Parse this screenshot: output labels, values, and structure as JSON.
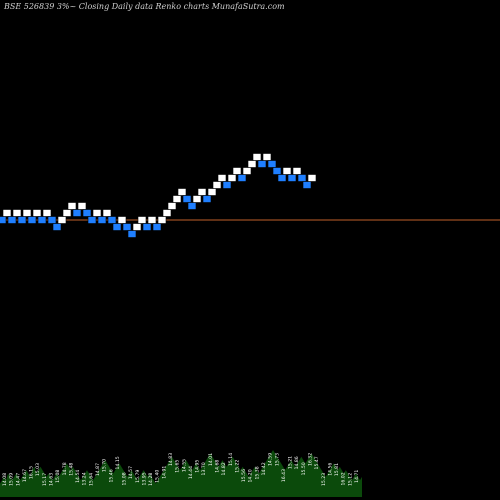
{
  "title": "BSE 526839 3%~ Closing Daily data Renko charts MunafaSutra.com",
  "colors": {
    "background": "#000000",
    "up_brick": "#ffffff",
    "down_brick": "#1f7fff",
    "brick_edge": "#000000",
    "reference_line": "#c0602a",
    "volume_fill": "#0b4a0b",
    "label_text": "#ffffff"
  },
  "chart_data": {
    "type": "renko",
    "title": "BSE 526839 3%~ Closing Daily data Renko charts MunafaSutra.com",
    "xlabel": "",
    "ylabel": "",
    "grid": false,
    "reference_level": 0,
    "bricks": [
      {
        "level": 0,
        "dir": "down"
      },
      {
        "level": 1,
        "dir": "up"
      },
      {
        "level": 0,
        "dir": "down"
      },
      {
        "level": 1,
        "dir": "up"
      },
      {
        "level": 0,
        "dir": "down"
      },
      {
        "level": 1,
        "dir": "up"
      },
      {
        "level": 0,
        "dir": "down"
      },
      {
        "level": 1,
        "dir": "up"
      },
      {
        "level": 0,
        "dir": "down"
      },
      {
        "level": 1,
        "dir": "up"
      },
      {
        "level": 0,
        "dir": "down"
      },
      {
        "level": -1,
        "dir": "down"
      },
      {
        "level": 0,
        "dir": "up"
      },
      {
        "level": 1,
        "dir": "up"
      },
      {
        "level": 2,
        "dir": "up"
      },
      {
        "level": 1,
        "dir": "down"
      },
      {
        "level": 2,
        "dir": "up"
      },
      {
        "level": 1,
        "dir": "down"
      },
      {
        "level": 0,
        "dir": "down"
      },
      {
        "level": 1,
        "dir": "up"
      },
      {
        "level": 0,
        "dir": "down"
      },
      {
        "level": 1,
        "dir": "up"
      },
      {
        "level": 0,
        "dir": "down"
      },
      {
        "level": -1,
        "dir": "down"
      },
      {
        "level": 0,
        "dir": "up"
      },
      {
        "level": -1,
        "dir": "down"
      },
      {
        "level": -2,
        "dir": "down"
      },
      {
        "level": -1,
        "dir": "up"
      },
      {
        "level": 0,
        "dir": "up"
      },
      {
        "level": -1,
        "dir": "down"
      },
      {
        "level": 0,
        "dir": "up"
      },
      {
        "level": -1,
        "dir": "down"
      },
      {
        "level": 0,
        "dir": "up"
      },
      {
        "level": 1,
        "dir": "up"
      },
      {
        "level": 2,
        "dir": "up"
      },
      {
        "level": 3,
        "dir": "up"
      },
      {
        "level": 4,
        "dir": "up"
      },
      {
        "level": 3,
        "dir": "down"
      },
      {
        "level": 2,
        "dir": "down"
      },
      {
        "level": 3,
        "dir": "up"
      },
      {
        "level": 4,
        "dir": "up"
      },
      {
        "level": 3,
        "dir": "down"
      },
      {
        "level": 4,
        "dir": "up"
      },
      {
        "level": 5,
        "dir": "up"
      },
      {
        "level": 6,
        "dir": "up"
      },
      {
        "level": 5,
        "dir": "down"
      },
      {
        "level": 6,
        "dir": "up"
      },
      {
        "level": 7,
        "dir": "up"
      },
      {
        "level": 6,
        "dir": "down"
      },
      {
        "level": 7,
        "dir": "up"
      },
      {
        "level": 8,
        "dir": "up"
      },
      {
        "level": 9,
        "dir": "up"
      },
      {
        "level": 8,
        "dir": "down"
      },
      {
        "level": 9,
        "dir": "up"
      },
      {
        "level": 8,
        "dir": "down"
      },
      {
        "level": 7,
        "dir": "down"
      },
      {
        "level": 6,
        "dir": "down"
      },
      {
        "level": 7,
        "dir": "up"
      },
      {
        "level": 6,
        "dir": "down"
      },
      {
        "level": 7,
        "dir": "up"
      },
      {
        "level": 6,
        "dir": "down"
      },
      {
        "level": 5,
        "dir": "down"
      },
      {
        "level": 6,
        "dir": "up"
      }
    ],
    "volume": [
      4,
      5,
      6,
      5,
      7,
      6,
      5,
      6,
      7,
      6,
      5,
      6,
      7,
      8,
      7,
      6,
      8,
      9,
      7,
      8,
      9,
      8,
      7,
      6,
      7,
      6,
      5,
      6,
      7,
      6,
      7,
      8,
      9,
      10,
      9,
      8,
      9,
      8,
      7,
      6,
      5,
      6,
      7,
      8,
      7,
      6,
      5,
      6,
      7,
      8,
      9,
      10,
      11,
      10,
      9,
      8,
      7,
      8,
      9,
      10,
      9,
      8,
      7,
      6,
      7,
      8,
      7,
      6,
      5,
      6,
      7,
      8,
      7,
      6,
      7,
      6,
      5,
      4,
      5,
      6,
      7,
      8,
      9,
      10,
      11,
      12,
      11,
      10,
      9,
      8,
      9,
      10,
      11,
      10,
      9,
      8,
      9,
      10,
      9,
      8,
      9,
      10,
      11,
      12,
      13,
      12,
      11,
      10,
      9,
      10,
      11,
      10,
      9,
      10,
      11,
      12,
      11,
      10,
      9,
      8,
      9,
      8,
      7,
      6,
      7,
      8,
      9,
      8,
      7,
      8,
      9,
      10,
      11,
      12,
      13,
      14,
      13,
      12,
      11,
      10,
      9,
      8,
      9,
      10,
      11,
      10,
      9,
      10,
      11,
      12,
      11,
      10,
      11,
      12,
      13,
      12,
      11,
      10,
      9,
      8,
      7,
      6,
      7,
      8,
      9,
      10,
      9,
      8,
      9,
      8,
      7,
      8,
      7,
      6,
      5,
      6,
      7,
      6,
      5,
      6
    ],
    "price_labels": [
      "14.08",
      "15.09",
      "14.47",
      "14.67",
      "16.15",
      "15.03",
      "15.17",
      "14.63",
      "15.08",
      "14.78",
      "15.48",
      "14.54",
      "13.24",
      "15.64",
      "14.87",
      "15.70",
      "15.46",
      "14.15",
      "15.08",
      "14.57",
      "15.79",
      "13.95",
      "14.28",
      "15.40",
      "14.91",
      "14.83",
      "15.65",
      "14.55",
      "14.44",
      "14.95",
      "13.70",
      "14.01",
      "14.68",
      "14.82",
      "15.14",
      "15.22",
      "15.56",
      "14.20",
      "15.38",
      "14.42",
      "14.59",
      "15.73",
      "16.43",
      "15.21",
      "14.86",
      "15.50",
      "16.32",
      "15.47",
      "15.23",
      "14.56",
      "15.81",
      "16.02",
      "15.12",
      "14.71"
    ]
  }
}
